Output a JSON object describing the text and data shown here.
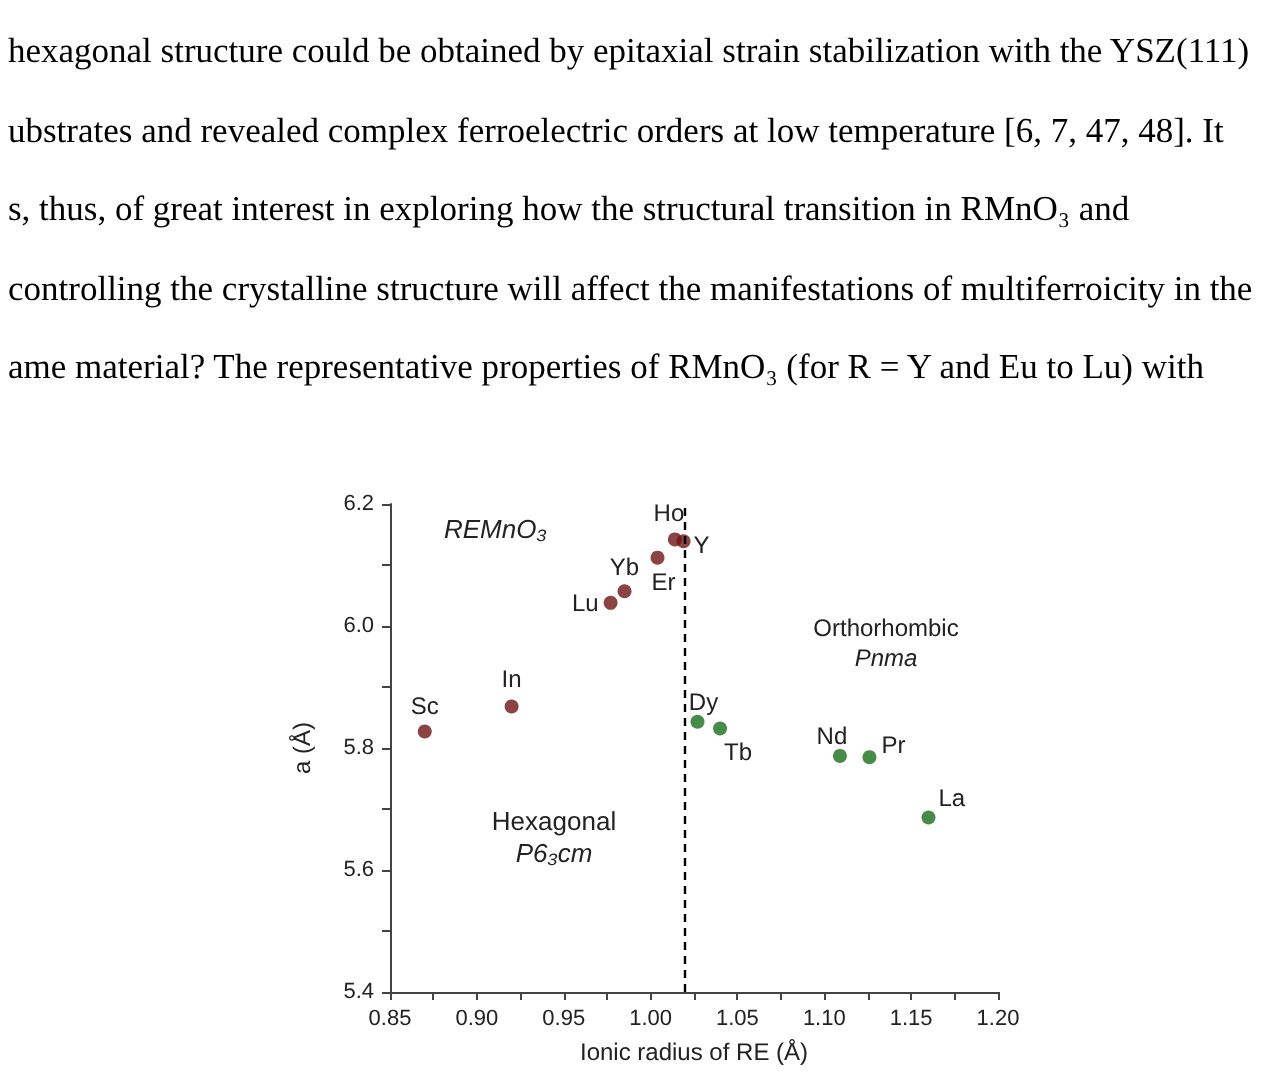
{
  "chart_data": {
    "type": "scatter",
    "xlabel": "Ionic radius of RE (Å)",
    "ylabel": "a (Å)",
    "xlim": [
      0.85,
      1.2
    ],
    "xticks": [
      {
        "value": 0.85,
        "label": "0.85"
      },
      {
        "value": 0.875,
        "label": null
      },
      {
        "value": 0.9,
        "label": "0.90"
      },
      {
        "value": 0.925,
        "label": null
      },
      {
        "value": 0.95,
        "label": "0.95"
      },
      {
        "value": 0.975,
        "label": null
      },
      {
        "value": 1,
        "label": "1.00"
      },
      {
        "value": 1.025,
        "label": null
      },
      {
        "value": 1.05,
        "label": "1.05"
      },
      {
        "value": 1.075,
        "label": null
      },
      {
        "value": 1.1,
        "label": "1.10"
      },
      {
        "value": 1.125,
        "label": null
      },
      {
        "value": 1.15,
        "label": "1.15"
      },
      {
        "value": 1.175,
        "label": null
      },
      {
        "value": 1.2,
        "label": "1.20"
      }
    ],
    "ylim": [
      5.4,
      6.2
    ],
    "yticks": [
      {
        "value": 5.4,
        "label": "5.4"
      },
      {
        "value": 5.5,
        "label": null
      },
      {
        "value": 5.6,
        "label": "5.6"
      },
      {
        "value": 5.7,
        "label": null
      },
      {
        "value": 5.8,
        "label": "5.8"
      },
      {
        "value": 5.9,
        "label": null
      },
      {
        "value": 6,
        "label": "6.0"
      },
      {
        "value": 6.1,
        "label": null
      },
      {
        "value": 6.2,
        "label": "6.2"
      }
    ],
    "grid": false,
    "marker": "circle",
    "series": [
      {
        "color": "#6e1414",
        "x": [
          0.87,
          0.92,
          0.977,
          0.985,
          1.004,
          1.014,
          1.019
        ],
        "values": [
          5.827,
          5.868,
          6.038,
          6.057,
          6.112,
          6.142,
          6.139
        ]
      },
      {
        "color": "#1a6e1a",
        "x": [
          1.027,
          1.04,
          1.109,
          1.126,
          1.16
        ],
        "values": [
          5.843,
          5.832,
          5.787,
          5.785,
          5.686
        ]
      }
    ],
    "ref_lines": [
      {
        "axis": "x",
        "value": 1.021,
        "color": "#000000",
        "line_style": "dashed"
      }
    ],
    "annotations": [
      "hexagonal structure could be obtained by epitaxial strain stabilization with the YSZ(111)\nubstrates and revealed complex ferroelectric orders at low temperature [6, 7, 47, 48]. It\ns, thus, of great interest in exploring how the structural transition in RMnO₃ and\ncontrolling the crystalline structure will affect the manifestations of multiferroicity in the\name material? The representative properties of RMnO₃ (for R = Y and Eu to Lu) with",
      "REMnO₃",
      "Hexagonal",
      "P6₃cm",
      "Orthorhombic",
      "Pnma",
      {
        "text": "Sc",
        "x": 0.87,
        "y": 5.827
      },
      {
        "text": "In",
        "x": 0.92,
        "y": 5.868
      },
      {
        "text": "Lu",
        "x": 0.977,
        "y": 6.038
      },
      {
        "text": "Yb",
        "x": 0.985,
        "y": 6.057
      },
      {
        "text": "Er",
        "x": 1.004,
        "y": 6.112
      },
      {
        "text": "Ho",
        "x": 1.014,
        "y": 6.142
      },
      {
        "text": "Y",
        "x": 1.019,
        "y": 6.139
      },
      {
        "text": "Dy",
        "x": 1.027,
        "y": 5.843
      },
      {
        "text": "Tb",
        "x": 1.04,
        "y": 5.832
      },
      {
        "text": "Nd",
        "x": 1.109,
        "y": 5.787
      },
      {
        "text": "Pr",
        "x": 1.126,
        "y": 5.785
      },
      {
        "text": "La",
        "x": 1.16,
        "y": 5.686
      }
    ]
  }
}
